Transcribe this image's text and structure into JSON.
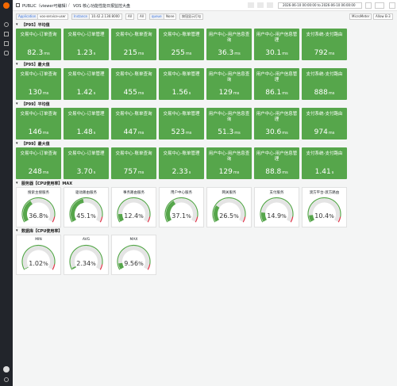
{
  "header": {
    "breadcrumb": "PUBLIC（viewer可编辑）",
    "separator": "/",
    "title": "VOS 核心功能性能日报监控大盘",
    "time_range": "2026-06-10 00:00:00 to 2026-06-10 06:00:00"
  },
  "variables": [
    {
      "label": "Application",
      "value": "vos-service-user"
    },
    {
      "label": "Instance",
      "value": "10.42.2.136:8000"
    },
    {
      "value": "All"
    },
    {
      "value": "All"
    },
    {
      "label": "queue",
      "value": "None"
    },
    {
      "value": "按钮显示打勾"
    }
  ],
  "links": [
    "MicroMeter",
    "Allow B-3"
  ],
  "stat_sections": [
    {
      "title": "【P95】平均值",
      "panels": [
        {
          "title": "交易中心-订单查询",
          "value": "82.3",
          "unit": "ms"
        },
        {
          "title": "交易中心-订单管理",
          "value": "1.23",
          "unit": "s"
        },
        {
          "title": "交易中心-账单查询",
          "value": "215",
          "unit": "ms"
        },
        {
          "title": "交易中心-账单管理",
          "value": "255",
          "unit": "ms"
        },
        {
          "title": "用户中心-用户信息查询",
          "value": "36.3",
          "unit": "ms"
        },
        {
          "title": "用户中心-用户信息管理",
          "value": "30.1",
          "unit": "ms"
        },
        {
          "title": "支付系统-支付路由",
          "value": "792",
          "unit": "ms"
        }
      ]
    },
    {
      "title": "【P95】最大值",
      "panels": [
        {
          "title": "交易中心-订单查询",
          "value": "130",
          "unit": "ms"
        },
        {
          "title": "交易中心-订单管理",
          "value": "1.42",
          "unit": "s"
        },
        {
          "title": "交易中心-账单查询",
          "value": "455",
          "unit": "ms"
        },
        {
          "title": "交易中心-账单管理",
          "value": "1.56",
          "unit": "s"
        },
        {
          "title": "用户中心-用户信息查询",
          "value": "129",
          "unit": "ms"
        },
        {
          "title": "用户中心-用户信息管理",
          "value": "86.1",
          "unit": "ms"
        },
        {
          "title": "支付系统-支付路由",
          "value": "888",
          "unit": "ms"
        }
      ]
    },
    {
      "title": "【P99】平均值",
      "panels": [
        {
          "title": "交易中心-订单查询",
          "value": "146",
          "unit": "ms"
        },
        {
          "title": "交易中心-订单管理",
          "value": "1.48",
          "unit": "s"
        },
        {
          "title": "交易中心-账单查询",
          "value": "447",
          "unit": "ms"
        },
        {
          "title": "交易中心-账单管理",
          "value": "523",
          "unit": "ms"
        },
        {
          "title": "用户中心-用户信息查询",
          "value": "51.3",
          "unit": "ms"
        },
        {
          "title": "用户中心-用户信息管理",
          "value": "30.6",
          "unit": "ms"
        },
        {
          "title": "支付系统-支付路由",
          "value": "974",
          "unit": "ms"
        }
      ]
    },
    {
      "title": "【P99】最大值",
      "panels": [
        {
          "title": "交易中心-订单查询",
          "value": "248",
          "unit": "ms"
        },
        {
          "title": "交易中心-订单管理",
          "value": "3.70",
          "unit": "s"
        },
        {
          "title": "交易中心-账单查询",
          "value": "757",
          "unit": "ms"
        },
        {
          "title": "交易中心-账单管理",
          "value": "2.33",
          "unit": "s"
        },
        {
          "title": "用户中心-用户信息查询",
          "value": "129",
          "unit": "ms"
        },
        {
          "title": "用户中心-用户信息管理",
          "value": "88.8",
          "unit": "ms"
        },
        {
          "title": "支付系统-支付路由",
          "value": "1.41",
          "unit": "s"
        }
      ]
    }
  ],
  "gauge_sections": [
    {
      "title": "服务器【CPU使用率】MAX",
      "panels": [
        {
          "title": "搜索主搜服务",
          "value": 36.8,
          "unit": "%"
        },
        {
          "title": "驱动路由服务",
          "value": 45.1,
          "unit": "%"
        },
        {
          "title": "事务路由服务",
          "value": 12.4,
          "unit": "%"
        },
        {
          "title": "用户中心服务",
          "value": 37.1,
          "unit": "%"
        },
        {
          "title": "网关服务",
          "value": 26.5,
          "unit": "%"
        },
        {
          "title": "支付服务",
          "value": 14.9,
          "unit": "%"
        },
        {
          "title": "渡方平台-渡方路由",
          "value": 10.4,
          "unit": "%"
        }
      ]
    },
    {
      "title": "数据库【CPU使用率】",
      "panels": [
        {
          "title": "MIN",
          "value": 1.02,
          "unit": "%"
        },
        {
          "title": "AVG",
          "value": 2.34,
          "unit": "%"
        },
        {
          "title": "MAX",
          "value": 9.56,
          "unit": "%"
        }
      ]
    }
  ]
}
